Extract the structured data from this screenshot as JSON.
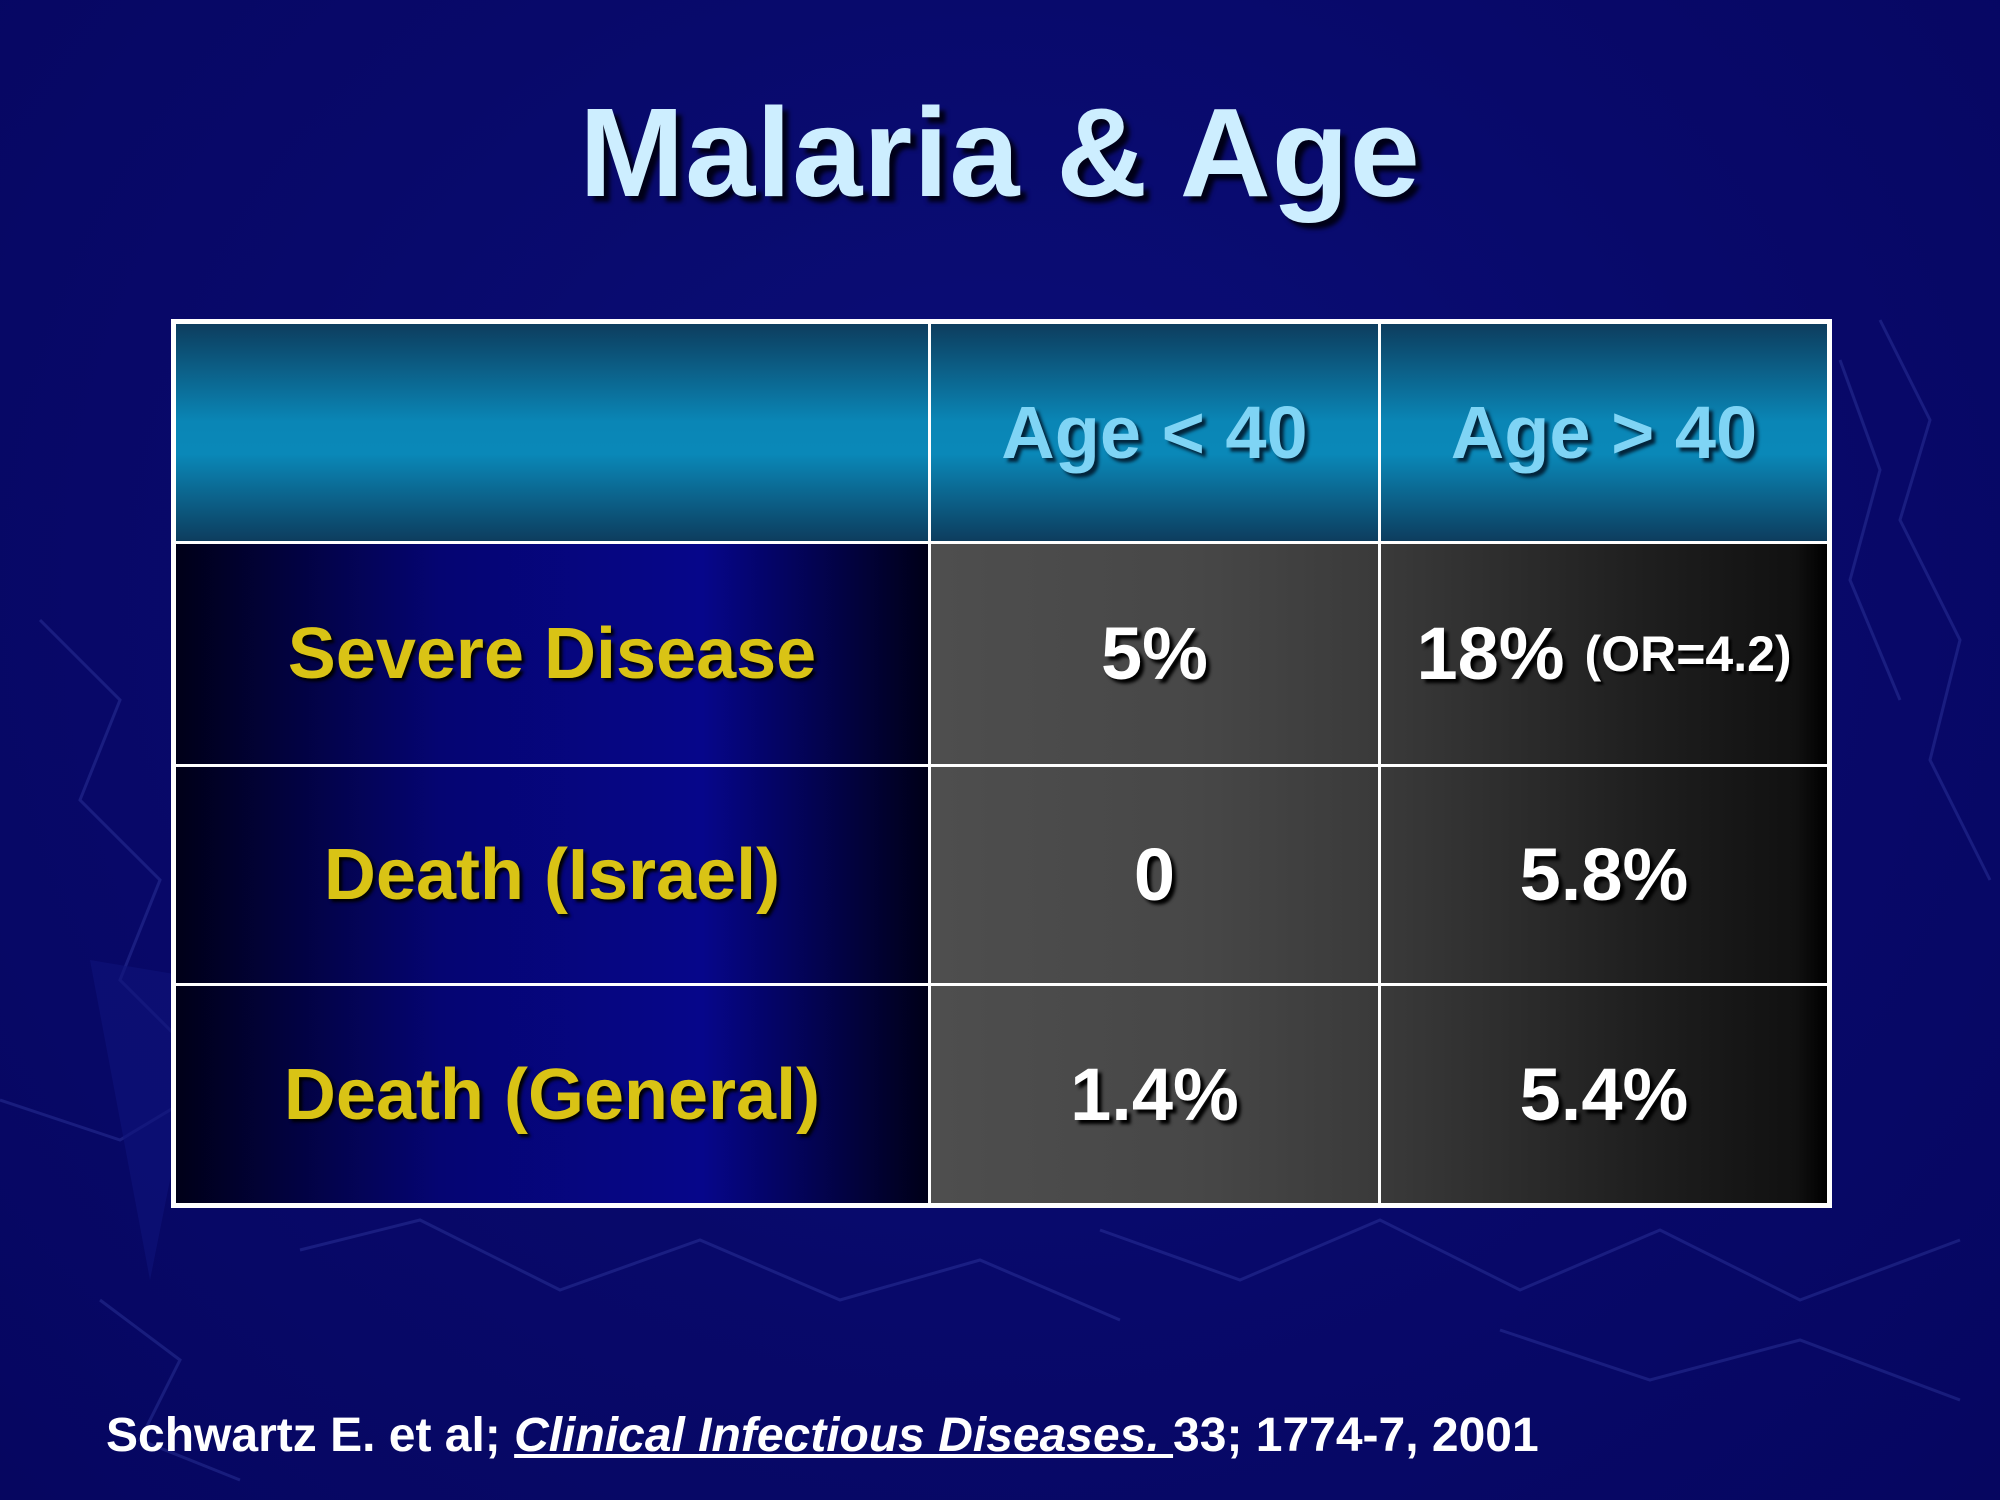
{
  "slide": {
    "title": "Malaria & Age"
  },
  "table": {
    "columns": [
      "",
      "Age < 40",
      "Age > 40"
    ],
    "rows": [
      {
        "label": "Severe Disease",
        "under_40": "5%",
        "over_40": "18%",
        "over_40_note": "(OR=4.2)"
      },
      {
        "label": "Death (Israel)",
        "under_40": "0",
        "over_40": "5.8%",
        "over_40_note": ""
      },
      {
        "label": "Death (General)",
        "under_40": "1.4%",
        "over_40": "5.4%",
        "over_40_note": ""
      }
    ]
  },
  "citation": {
    "authors": "Schwartz E. et al; ",
    "journal": "Clinical Infectious Diseases. ",
    "details": "33; 1774-7, 2001"
  },
  "colors": {
    "background": "#0a0a6e",
    "title": "#cdeeff",
    "header_text": "#7fd4f5",
    "row_label": "#d9c315",
    "value": "#ffffff"
  }
}
